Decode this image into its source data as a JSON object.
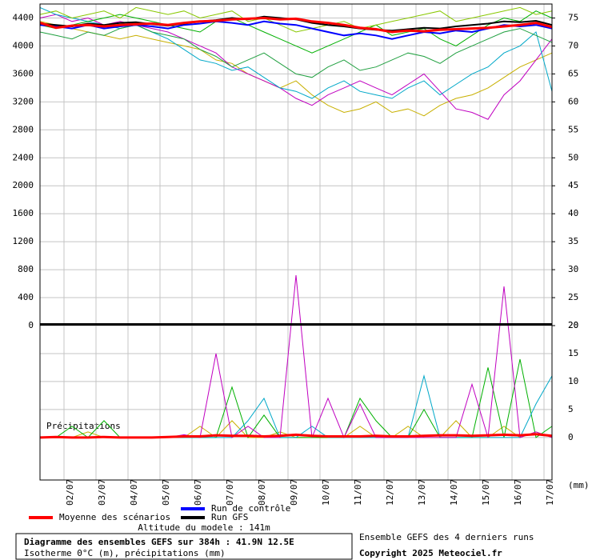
{
  "chart_data": [
    {
      "type": "line",
      "title": "Diagramme des ensembles GEFS sur 384h : 41.9N 12.5E",
      "subtitle": "Isotherme 0°C (m), précipitations (mm)",
      "annotations": [
        "Altitude du modele : 141m",
        "Ensemble GEFS des 4 derniers runs",
        "Copyright 2025 Meteociel.fr"
      ],
      "x": [
        0,
        12,
        24,
        36,
        48,
        60,
        72,
        84,
        96,
        108,
        120,
        132,
        144,
        156,
        168,
        180,
        192,
        204,
        216,
        228,
        240,
        252,
        264,
        276,
        288,
        300,
        312,
        324,
        336,
        348,
        360,
        372,
        384
      ],
      "xlim": [
        0,
        384
      ],
      "xticks": [
        {
          "value": 18,
          "label": "02/07"
        },
        {
          "value": 42,
          "label": "03/07"
        },
        {
          "value": 66,
          "label": "04/07"
        },
        {
          "value": 90,
          "label": "05/07"
        },
        {
          "value": 114,
          "label": "06/07"
        },
        {
          "value": 138,
          "label": "07/07"
        },
        {
          "value": 162,
          "label": "08/07"
        },
        {
          "value": 186,
          "label": "09/07"
        },
        {
          "value": 210,
          "label": "10/07"
        },
        {
          "value": 234,
          "label": "11/07"
        },
        {
          "value": 258,
          "label": "12/07"
        },
        {
          "value": 282,
          "label": "13/07"
        },
        {
          "value": 306,
          "label": "14/07"
        },
        {
          "value": 330,
          "label": "15/07"
        },
        {
          "value": 354,
          "label": "16/07"
        },
        {
          "value": 378,
          "label": "17/07"
        }
      ],
      "ylim": [
        0,
        4600
      ],
      "yticks": [
        0,
        400,
        800,
        1200,
        1600,
        2000,
        2400,
        2800,
        3200,
        3600,
        4000,
        4400
      ],
      "y2lim": [
        20,
        77.5
      ],
      "y2ticks": [
        20,
        25,
        30,
        35,
        40,
        45,
        50,
        55,
        60,
        65,
        70,
        75
      ],
      "grid": true,
      "series": [
        {
          "color": "#c8b000",
          "values": [
            4350,
            4300,
            4250,
            4200,
            4150,
            4100,
            4150,
            4100,
            4050,
            4000,
            3950,
            3800,
            3750,
            3600,
            3500,
            3400,
            3500,
            3300,
            3150,
            3050,
            3100,
            3200,
            3050,
            3100,
            3000,
            3150,
            3250,
            3300,
            3400,
            3550,
            3700,
            3800,
            3900
          ]
        },
        {
          "color": "#c000c0",
          "values": [
            4400,
            4450,
            4350,
            4400,
            4300,
            4350,
            4300,
            4250,
            4200,
            4100,
            4000,
            3900,
            3700,
            3600,
            3500,
            3400,
            3250,
            3150,
            3300,
            3400,
            3500,
            3400,
            3300,
            3450,
            3600,
            3350,
            3100,
            3050,
            2950,
            3300,
            3500,
            3800,
            4100
          ]
        },
        {
          "color": "#00a8c8",
          "values": [
            4550,
            4450,
            4400,
            4350,
            4300,
            4250,
            4300,
            4200,
            4100,
            3950,
            3800,
            3750,
            3650,
            3700,
            3550,
            3400,
            3350,
            3250,
            3400,
            3500,
            3350,
            3300,
            3250,
            3400,
            3500,
            3300,
            3450,
            3600,
            3700,
            3900,
            4000,
            4200,
            3350
          ]
        },
        {
          "color": "#00b000",
          "values": [
            4300,
            4250,
            4300,
            4350,
            4400,
            4450,
            4400,
            4350,
            4300,
            4250,
            4200,
            4350,
            4400,
            4300,
            4200,
            4100,
            4000,
            3900,
            4000,
            4100,
            4200,
            4300,
            4150,
            4200,
            4250,
            4100,
            4000,
            4150,
            4300,
            4400,
            4350,
            4500,
            4400
          ]
        },
        {
          "color": "#20a040",
          "values": [
            4200,
            4150,
            4100,
            4200,
            4150,
            4250,
            4300,
            4200,
            4150,
            4100,
            3950,
            3850,
            3700,
            3800,
            3900,
            3750,
            3600,
            3550,
            3700,
            3800,
            3650,
            3700,
            3800,
            3900,
            3850,
            3750,
            3900,
            4000,
            4100,
            4200,
            4250,
            4150,
            4050
          ]
        },
        {
          "color": "#88c800",
          "values": [
            4450,
            4500,
            4400,
            4450,
            4500,
            4400,
            4550,
            4500,
            4450,
            4500,
            4400,
            4450,
            4500,
            4350,
            4400,
            4300,
            4200,
            4250,
            4300,
            4350,
            4250,
            4300,
            4350,
            4400,
            4450,
            4500,
            4350,
            4400,
            4450,
            4500,
            4550,
            4450,
            4500
          ]
        },
        {
          "name": "Run de contrôle",
          "color": "#0000ff",
          "values": [
            4300,
            4280,
            4250,
            4300,
            4250,
            4280,
            4300,
            4280,
            4250,
            4300,
            4320,
            4350,
            4330,
            4300,
            4350,
            4320,
            4300,
            4250,
            4200,
            4150,
            4180,
            4150,
            4100,
            4150,
            4200,
            4180,
            4220,
            4200,
            4250,
            4300,
            4280,
            4300,
            4250
          ]
        },
        {
          "name": "Run GFS",
          "color": "#000000",
          "values": [
            4320,
            4300,
            4280,
            4320,
            4300,
            4330,
            4340,
            4310,
            4290,
            4320,
            4350,
            4370,
            4400,
            4380,
            4420,
            4400,
            4380,
            4330,
            4300,
            4280,
            4250,
            4230,
            4220,
            4240,
            4260,
            4250,
            4280,
            4300,
            4320,
            4350,
            4340,
            4360,
            4300
          ]
        },
        {
          "name": "Moyenne des scénarios",
          "color": "#ff0000",
          "values": [
            4330,
            4260,
            4290,
            4300,
            4280,
            4300,
            4310,
            4320,
            4300,
            4330,
            4350,
            4360,
            4380,
            4390,
            4400,
            4380,
            4390,
            4350,
            4330,
            4300,
            4260,
            4240,
            4200,
            4220,
            4210,
            4230,
            4240,
            4250,
            4260,
            4280,
            4300,
            4330,
            4270
          ]
        }
      ]
    },
    {
      "type": "line",
      "title": "Précipitations",
      "y_label": "(mm)",
      "x": [
        0,
        12,
        24,
        36,
        48,
        60,
        72,
        84,
        96,
        108,
        120,
        132,
        144,
        156,
        168,
        180,
        192,
        204,
        216,
        228,
        240,
        252,
        264,
        276,
        288,
        300,
        312,
        324,
        336,
        348,
        360,
        372,
        384
      ],
      "xlim": [
        0,
        384
      ],
      "ylim": [
        -7.6,
        20
      ],
      "yticks": [
        0,
        5,
        10,
        15,
        20
      ],
      "y_axis_side": "right",
      "grid": true,
      "series": [
        {
          "color": "#c8b000",
          "values": [
            0,
            0,
            0,
            1,
            0,
            0,
            0,
            0,
            0,
            0,
            2,
            0,
            3,
            0,
            0,
            1,
            0,
            0,
            0,
            0,
            2,
            0,
            0,
            2,
            0,
            0,
            3,
            0,
            0,
            2,
            0,
            1,
            0
          ]
        },
        {
          "color": "#00b000",
          "values": [
            0,
            0,
            2,
            0,
            3,
            0,
            0,
            0,
            0,
            0,
            0,
            0,
            9,
            0,
            4,
            0,
            0,
            0,
            0,
            0,
            7,
            3,
            0,
            0,
            5,
            0,
            0,
            0,
            12.5,
            0,
            14,
            0,
            2
          ]
        },
        {
          "color": "#00a8c8",
          "values": [
            0,
            0,
            0,
            0,
            0,
            0,
            0,
            0,
            0,
            0,
            0,
            0,
            0,
            3,
            7,
            0,
            0,
            2,
            0,
            0,
            0,
            0,
            0,
            0,
            11,
            0,
            0,
            0,
            0,
            0,
            0,
            6,
            11
          ]
        },
        {
          "color": "#c000c0",
          "values": [
            0,
            0,
            0,
            0,
            0,
            0,
            0,
            0,
            0,
            0.5,
            0,
            15,
            0,
            2,
            0,
            0,
            29,
            0,
            7,
            0,
            6,
            0,
            0,
            0,
            0,
            0,
            0,
            9.5,
            0,
            27,
            0,
            1,
            0
          ]
        },
        {
          "color": "#ff0000",
          "values": [
            0,
            0.1,
            0,
            0,
            0.1,
            0,
            0,
            0,
            0.1,
            0.2,
            0.2,
            0.4,
            0.3,
            0.3,
            0.2,
            0.3,
            0.5,
            0.3,
            0.2,
            0.2,
            0.2,
            0.3,
            0.2,
            0.2,
            0.3,
            0.4,
            0.4,
            0.3,
            0.4,
            0.5,
            0.4,
            0.6,
            0.3
          ]
        }
      ]
    }
  ]
}
